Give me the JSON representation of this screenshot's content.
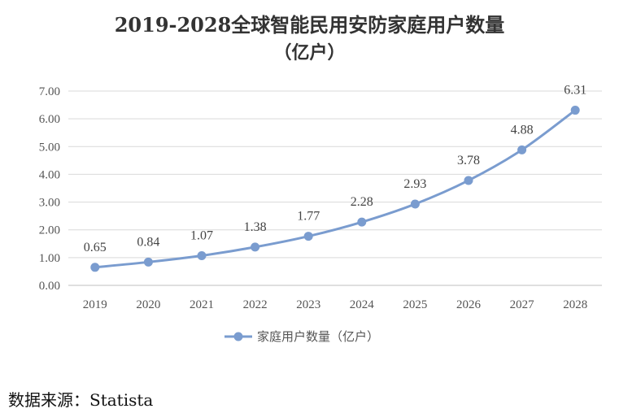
{
  "chart_data": {
    "type": "line",
    "title_line1": "2019-2028全球智能民用安防家庭用户数量",
    "title_line2": "（亿户）",
    "categories": [
      "2019",
      "2020",
      "2021",
      "2022",
      "2023",
      "2024",
      "2025",
      "2026",
      "2027",
      "2028"
    ],
    "series": [
      {
        "name": "家庭用户数量（亿户）",
        "values": [
          0.65,
          0.84,
          1.07,
          1.38,
          1.77,
          2.28,
          2.93,
          3.78,
          4.88,
          6.31
        ],
        "labels": [
          "0.65",
          "0.84",
          "1.07",
          "1.38",
          "1.77",
          "2.28",
          "2.93",
          "3.78",
          "4.88",
          "6.31"
        ]
      }
    ],
    "yticks": [
      "0.00",
      "1.00",
      "2.00",
      "3.00",
      "4.00",
      "5.00",
      "6.00",
      "7.00"
    ],
    "ylim": [
      0,
      7
    ],
    "grid": true,
    "legend_position": "bottom",
    "line_color": "#7a9ccf"
  },
  "source": "数据来源：Statista"
}
